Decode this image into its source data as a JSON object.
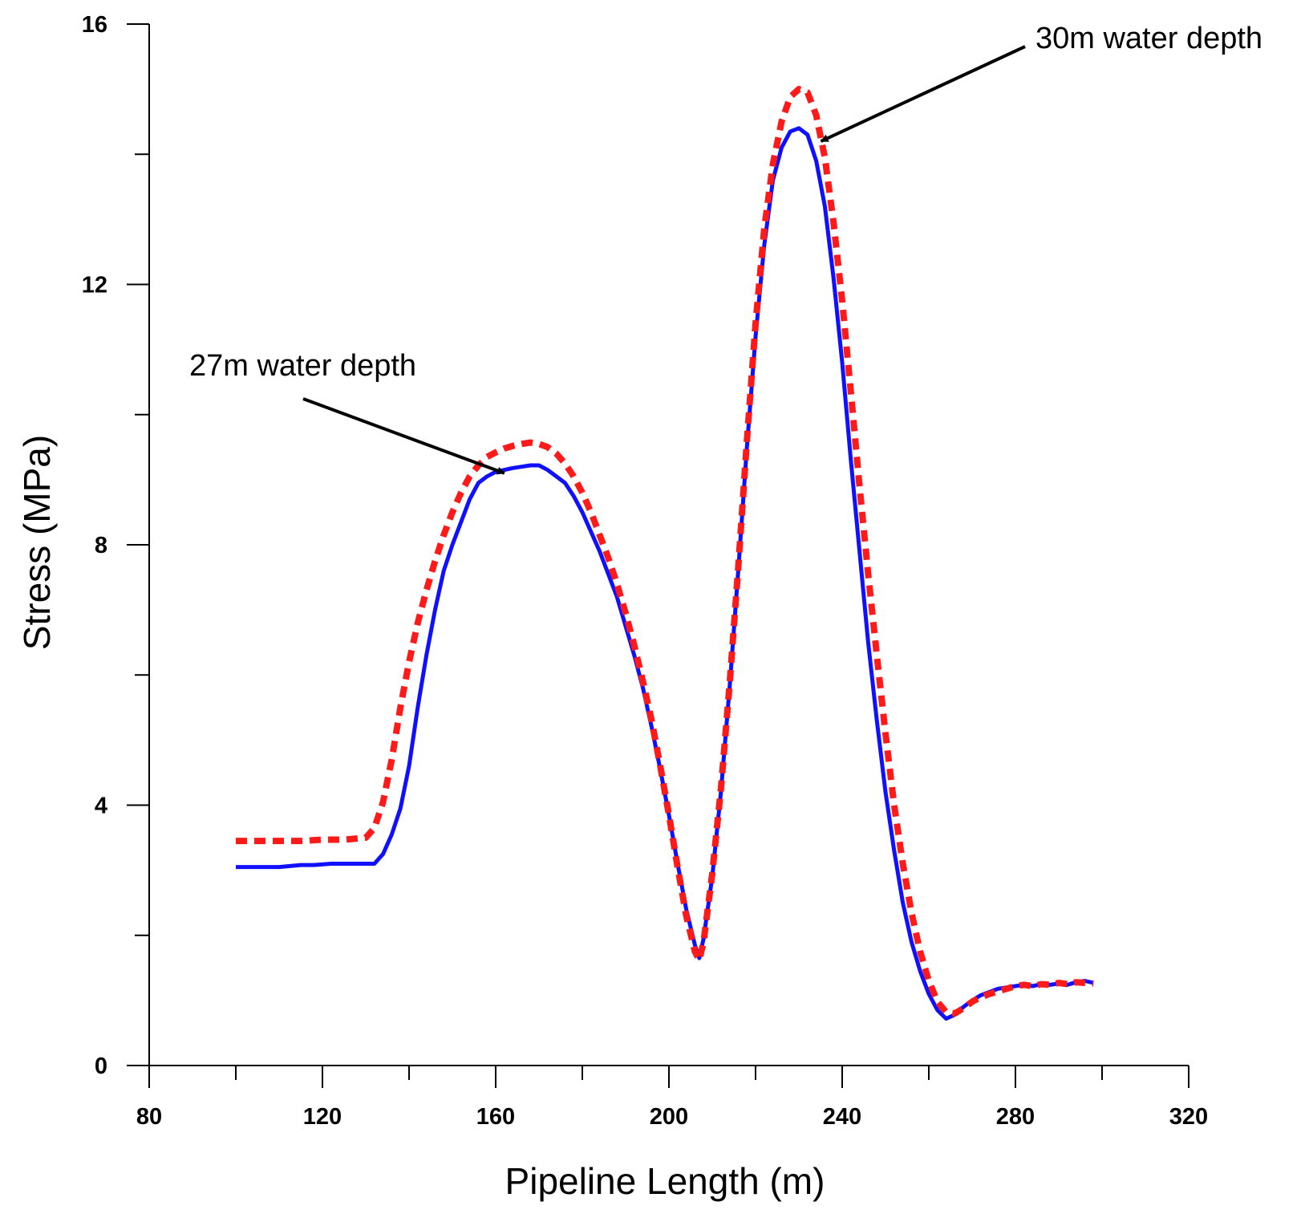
{
  "chart_data": {
    "type": "line",
    "title": "",
    "xlabel": "Pipeline Length (m)",
    "ylabel": "Stress (MPa)",
    "xlim": [
      80,
      320
    ],
    "ylim": [
      0,
      16
    ],
    "x_ticks": [
      "80",
      "120",
      "160",
      "200",
      "240",
      "280",
      "320"
    ],
    "y_ticks": [
      "0",
      "4",
      "8",
      "12",
      "16"
    ],
    "x_minor_step": 20,
    "y_minor_step": 2,
    "grid": false,
    "legend": "none",
    "series": [
      {
        "name": "27m water depth",
        "color": "#1010ff",
        "style": "solid",
        "x": [
          100,
          110,
          115,
          118,
          122,
          126,
          130,
          132,
          134,
          136,
          138,
          140,
          142,
          144,
          146,
          148,
          150,
          152,
          154,
          156,
          158,
          160,
          162,
          164,
          166,
          168,
          170,
          172,
          174,
          176,
          178,
          180,
          182,
          184,
          186,
          188,
          190,
          192,
          194,
          196,
          198,
          200,
          202,
          204,
          206,
          207,
          208,
          210,
          212,
          214,
          216,
          218,
          220,
          222,
          224,
          226,
          228,
          230,
          232,
          234,
          236,
          238,
          240,
          242,
          244,
          246,
          248,
          250,
          252,
          254,
          256,
          258,
          260,
          262,
          264,
          266,
          268,
          270,
          272,
          274,
          276,
          278,
          280,
          282,
          284,
          286,
          288,
          290,
          292,
          294,
          296,
          298
        ],
        "y": [
          3.05,
          3.05,
          3.08,
          3.08,
          3.1,
          3.1,
          3.1,
          3.1,
          3.25,
          3.55,
          3.95,
          4.6,
          5.5,
          6.3,
          7.0,
          7.6,
          8.0,
          8.35,
          8.7,
          8.95,
          9.05,
          9.12,
          9.15,
          9.18,
          9.2,
          9.22,
          9.22,
          9.15,
          9.05,
          8.95,
          8.75,
          8.5,
          8.2,
          7.9,
          7.55,
          7.2,
          6.75,
          6.3,
          5.8,
          5.2,
          4.55,
          3.85,
          3.1,
          2.4,
          1.85,
          1.65,
          1.95,
          2.9,
          4.2,
          5.8,
          7.6,
          9.5,
          11.2,
          12.6,
          13.6,
          14.1,
          14.35,
          14.4,
          14.3,
          13.9,
          13.2,
          12.1,
          10.8,
          9.3,
          7.9,
          6.5,
          5.3,
          4.2,
          3.3,
          2.5,
          1.9,
          1.45,
          1.1,
          0.85,
          0.72,
          0.78,
          0.9,
          1.0,
          1.08,
          1.13,
          1.18,
          1.2,
          1.22,
          1.24,
          1.22,
          1.25,
          1.24,
          1.26,
          1.24,
          1.28,
          1.3,
          1.27
        ]
      },
      {
        "name": "30m water depth",
        "color": "#ff1a1a",
        "style": "dashed",
        "x": [
          100,
          110,
          115,
          120,
          125,
          130,
          132,
          134,
          136,
          138,
          140,
          142,
          144,
          146,
          148,
          150,
          152,
          154,
          156,
          158,
          160,
          162,
          164,
          166,
          168,
          170,
          172,
          174,
          176,
          178,
          180,
          182,
          184,
          186,
          188,
          190,
          192,
          194,
          196,
          198,
          200,
          202,
          204,
          206,
          207,
          208,
          210,
          212,
          214,
          216,
          218,
          220,
          222,
          224,
          226,
          228,
          230,
          232,
          234,
          236,
          238,
          240,
          242,
          244,
          246,
          248,
          250,
          252,
          254,
          256,
          258,
          260,
          262,
          264,
          266,
          268,
          270,
          272,
          274,
          276,
          278,
          280,
          282,
          284,
          286,
          288,
          290,
          292,
          294,
          296,
          298
        ],
        "y": [
          3.45,
          3.45,
          3.45,
          3.47,
          3.47,
          3.5,
          3.65,
          4.05,
          4.7,
          5.5,
          6.2,
          6.8,
          7.3,
          7.75,
          8.15,
          8.5,
          8.8,
          9.05,
          9.22,
          9.35,
          9.42,
          9.48,
          9.52,
          9.55,
          9.57,
          9.55,
          9.5,
          9.4,
          9.25,
          9.05,
          8.8,
          8.5,
          8.15,
          7.8,
          7.4,
          6.95,
          6.45,
          5.9,
          5.3,
          4.6,
          3.85,
          3.05,
          2.3,
          1.75,
          1.62,
          1.9,
          2.95,
          4.25,
          5.85,
          7.65,
          9.6,
          11.4,
          12.85,
          13.85,
          14.5,
          14.88,
          15.0,
          14.95,
          14.6,
          13.95,
          12.95,
          11.75,
          10.35,
          8.9,
          7.55,
          6.3,
          5.1,
          4.0,
          3.1,
          2.35,
          1.75,
          1.3,
          0.98,
          0.82,
          0.8,
          0.88,
          0.98,
          1.05,
          1.1,
          1.14,
          1.18,
          1.22,
          1.24,
          1.22,
          1.25,
          1.24,
          1.27,
          1.25,
          1.28,
          1.27,
          1.26
        ]
      }
    ],
    "annotations": [
      {
        "text": "27m water depth",
        "target_x": 162,
        "target_y": 9.1
      },
      {
        "text": "30m water depth",
        "target_x": 234,
        "target_y": 14.2
      }
    ]
  }
}
